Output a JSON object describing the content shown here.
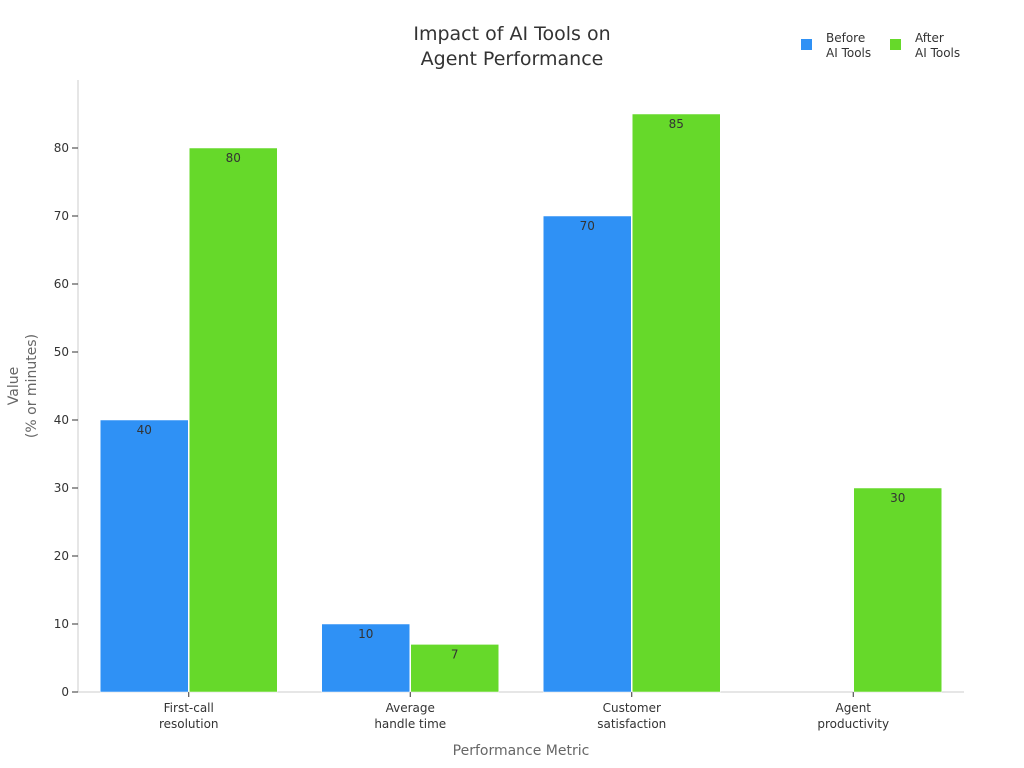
{
  "chart_data": {
    "type": "bar",
    "title": [
      "Impact of AI Tools on",
      "Agent Performance"
    ],
    "xlabel": "Performance Metric",
    "ylabel": [
      "Value",
      "(% or minutes)"
    ],
    "categories": [
      [
        "First-call",
        "resolution"
      ],
      [
        "Average",
        "handle time"
      ],
      [
        "Customer",
        "satisfaction"
      ],
      [
        "Agent",
        "productivity"
      ]
    ],
    "series": [
      {
        "name": [
          "Before",
          "AI Tools"
        ],
        "color": "#2f91f5",
        "values": [
          40,
          10,
          70,
          null
        ]
      },
      {
        "name": [
          "After",
          "AI Tools"
        ],
        "color": "#66d92a",
        "values": [
          80,
          7,
          85,
          30
        ]
      }
    ],
    "yticks": [
      0,
      10,
      20,
      30,
      40,
      50,
      60,
      70,
      80
    ],
    "ylim": [
      0,
      90
    ],
    "grid": false,
    "legend": "top-right"
  }
}
